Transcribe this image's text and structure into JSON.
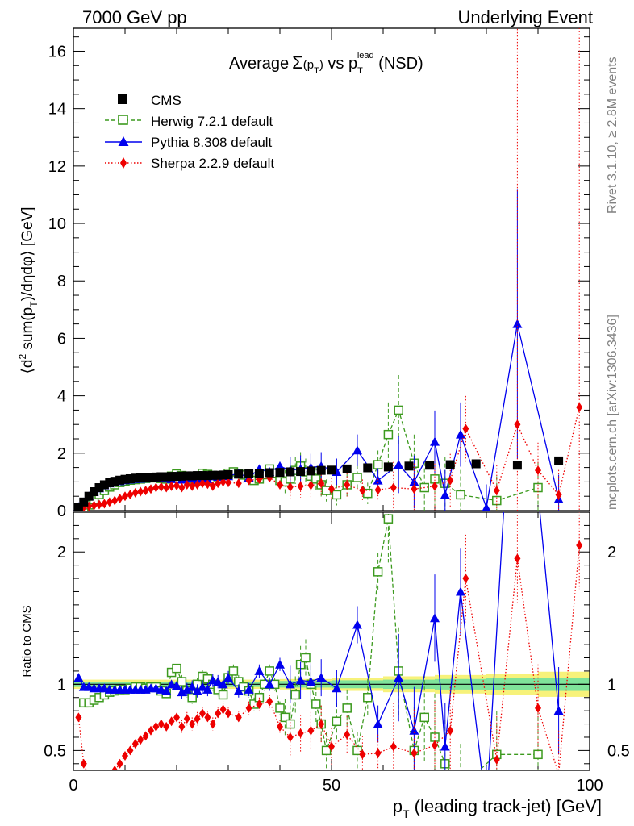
{
  "header": {
    "left": "7000 GeV pp",
    "right": "Underlying Event"
  },
  "side_labels": {
    "rivet": "Rivet 3.1.10, ≥ 2.8M events",
    "mcplots": "mcplots.cern.ch [arXiv:1306.3436]"
  },
  "chart_data": {
    "type": "scatter",
    "title_parts": {
      "a": "Average",
      "b": "Σ",
      "c": "(p",
      "d": "T",
      "e": ")",
      "f": " vs p",
      "g": "T",
      "h": "lead",
      "i": " (NSD)"
    },
    "xlabel": "p_T (leading track-jet) [GeV]",
    "xlabel_parts": {
      "p": "p",
      "sub": "T",
      "rest": " (leading track-jet) [GeV]"
    },
    "ylabel": "⟨d² sum(p_T)/dηdφ⟩ [GeV]",
    "ylabel_parts": {
      "a": "⟨d",
      "b": "2",
      "c": " sum(p",
      "d": "T",
      "e": ")/dηdφ⟩ [GeV]"
    },
    "ratio_ylabel": "Ratio to CMS",
    "xlim": [
      0,
      100
    ],
    "ylim": [
      0,
      16.8
    ],
    "ratio_ylim": [
      0.35,
      2.3
    ],
    "x_ticks": [
      0,
      50,
      100
    ],
    "y_ticks": [
      0,
      2,
      4,
      6,
      8,
      10,
      12,
      14,
      16
    ],
    "ratio_ticks": [
      0.5,
      1,
      2
    ],
    "legend_position": "top-left",
    "colors": {
      "cms": "#000000",
      "herwig": "#3c9a1e",
      "pythia": "#0000ee",
      "sherpa": "#ee0000",
      "band_inner": "#7fe39a",
      "band_outer": "#f7f27a"
    },
    "series": [
      {
        "name": "CMS",
        "x": [
          1,
          2,
          3,
          4,
          5,
          6,
          7,
          8,
          9,
          10,
          11,
          12,
          13,
          14,
          15,
          16,
          17,
          18,
          19,
          20,
          21,
          22,
          23,
          24,
          25,
          26,
          27,
          28,
          29,
          30,
          32,
          34,
          36,
          38,
          40,
          42,
          44,
          46,
          48,
          50,
          53,
          57,
          61,
          65,
          69,
          73,
          78,
          86,
          94
        ],
        "y": [
          0.12,
          0.3,
          0.5,
          0.66,
          0.8,
          0.9,
          0.97,
          1.02,
          1.06,
          1.09,
          1.11,
          1.13,
          1.14,
          1.15,
          1.16,
          1.17,
          1.18,
          1.18,
          1.19,
          1.19,
          1.2,
          1.21,
          1.21,
          1.22,
          1.22,
          1.22,
          1.23,
          1.23,
          1.24,
          1.25,
          1.27,
          1.28,
          1.3,
          1.32,
          1.33,
          1.35,
          1.36,
          1.38,
          1.4,
          1.41,
          1.45,
          1.49,
          1.52,
          1.55,
          1.58,
          1.6,
          1.63,
          1.58,
          1.73
        ]
      },
      {
        "name": "Herwig 7.2.1 default",
        "x": [
          2,
          3,
          4,
          5,
          6,
          7,
          8,
          9,
          10,
          11,
          12,
          13,
          14,
          15,
          16,
          17,
          18,
          19,
          20,
          21,
          22,
          23,
          24,
          25,
          26,
          27,
          28,
          29,
          30,
          31,
          32,
          33,
          34,
          35,
          36,
          37,
          38,
          39,
          40,
          41,
          42,
          43,
          44,
          45,
          46,
          47,
          48,
          49,
          51,
          53,
          55,
          57,
          59,
          61,
          63,
          66,
          68,
          70,
          72,
          75,
          82,
          90
        ],
        "y": [
          0.06,
          0.2,
          0.38,
          0.56,
          0.7,
          0.82,
          0.9,
          0.98,
          1.02,
          1.06,
          1.08,
          1.1,
          1.12,
          1.14,
          1.15,
          1.12,
          1.1,
          1.2,
          1.28,
          1.22,
          1.15,
          1.1,
          1.2,
          1.3,
          1.26,
          1.22,
          1.18,
          1.12,
          1.3,
          1.35,
          1.28,
          1.24,
          1.18,
          1.05,
          1.1,
          1.25,
          1.45,
          1.3,
          1.05,
          1.0,
          1.1,
          1.4,
          1.55,
          1.35,
          1.2,
          1.1,
          0.9,
          0.7,
          0.55,
          0.9,
          1.15,
          0.6,
          1.6,
          2.65,
          3.5,
          1.65,
          0.8,
          1.1,
          0.95,
          0.55,
          0.35,
          0.8
        ]
      },
      {
        "name": "Pythia 8.308 default",
        "x": [
          1,
          2,
          3,
          4,
          5,
          6,
          7,
          8,
          9,
          10,
          11,
          12,
          13,
          14,
          15,
          16,
          17,
          18,
          19,
          20,
          21,
          22,
          23,
          24,
          25,
          26,
          27,
          28,
          29,
          30,
          32,
          34,
          36,
          38,
          40,
          42,
          44,
          46,
          48,
          51,
          55,
          59,
          63,
          66,
          70,
          72,
          75,
          80,
          86,
          94
        ],
        "y": [
          0.13,
          0.29,
          0.5,
          0.66,
          0.78,
          0.88,
          0.95,
          1.0,
          1.03,
          1.06,
          1.08,
          1.1,
          1.11,
          1.12,
          1.14,
          1.15,
          1.14,
          1.12,
          1.1,
          1.2,
          1.08,
          1.12,
          1.15,
          1.06,
          1.12,
          1.1,
          1.2,
          1.18,
          1.25,
          1.2,
          1.3,
          1.15,
          1.45,
          1.35,
          1.55,
          1.4,
          1.45,
          1.5,
          1.55,
          1.35,
          2.1,
          1.05,
          1.6,
          1.0,
          2.4,
          0.55,
          2.65,
          0.1,
          6.5,
          0.4
        ]
      },
      {
        "name": "Sherpa 2.2.9 default",
        "x": [
          1,
          2,
          3,
          4,
          5,
          6,
          7,
          8,
          9,
          10,
          11,
          12,
          13,
          14,
          15,
          16,
          17,
          18,
          19,
          20,
          21,
          22,
          23,
          24,
          25,
          26,
          27,
          28,
          29,
          30,
          32,
          34,
          36,
          38,
          40,
          42,
          44,
          46,
          48,
          50,
          53,
          56,
          59,
          62,
          66,
          70,
          73,
          76,
          82,
          86,
          90,
          94,
          98
        ],
        "y": [
          0.09,
          0.12,
          0.15,
          0.18,
          0.21,
          0.24,
          0.3,
          0.35,
          0.42,
          0.5,
          0.56,
          0.62,
          0.66,
          0.7,
          0.75,
          0.8,
          0.82,
          0.8,
          0.85,
          0.87,
          0.8,
          0.9,
          0.85,
          0.9,
          0.95,
          0.92,
          0.85,
          0.95,
          1.0,
          0.98,
          0.95,
          1.05,
          1.1,
          1.15,
          0.9,
          0.82,
          0.85,
          0.88,
          0.95,
          0.75,
          0.9,
          0.7,
          0.72,
          0.8,
          0.75,
          0.85,
          1.05,
          2.85,
          0.7,
          3.0,
          1.4,
          0.55,
          3.6
        ]
      }
    ],
    "ratios": {
      "Herwig 7.2.1 default": [
        0.86,
        0.86,
        0.88,
        0.9,
        0.92,
        0.94,
        0.95,
        0.96,
        0.96,
        0.97,
        0.98,
        0.98,
        0.97,
        0.98,
        0.98,
        0.95,
        0.93,
        1.09,
        1.12,
        1.02,
        0.95,
        0.9,
        1.0,
        1.06,
        1.04,
        1.0,
        0.96,
        0.92,
        1.05,
        1.1,
        1.02,
        0.98,
        0.95,
        0.85,
        0.9,
        1.0,
        1.1,
        1.0,
        0.82,
        0.75,
        0.7,
        0.92,
        1.15,
        1.2,
        1.0,
        0.85,
        0.7,
        0.5,
        0.72,
        0.82,
        0.5,
        0.9,
        1.85,
        2.25,
        1.1,
        0.5,
        0.75,
        0.6,
        0.4,
        0.22,
        0.47,
        0.47
      ],
      "Pythia 8.308 default": [
        1.05,
        0.98,
        0.98,
        0.97,
        0.97,
        0.97,
        0.96,
        0.96,
        0.96,
        0.96,
        0.96,
        0.96,
        0.96,
        0.96,
        0.97,
        0.97,
        0.96,
        0.95,
        1.0,
        0.99,
        0.94,
        0.96,
        0.98,
        0.95,
        0.98,
        0.96,
        1.03,
        1.02,
        1.0,
        1.05,
        0.95,
        0.96,
        1.1,
        1.0,
        1.15,
        1.0,
        1.03,
        1.02,
        1.05,
        0.97,
        1.45,
        0.7,
        1.05,
        0.65,
        1.5,
        0.53,
        1.7,
        0.05,
        4.1,
        0.8
      ],
      "Sherpa 2.2.9 default": [
        0.75,
        0.4,
        0.3,
        0.27,
        0.26,
        0.27,
        0.31,
        0.35,
        0.4,
        0.46,
        0.5,
        0.55,
        0.58,
        0.61,
        0.65,
        0.68,
        0.7,
        0.68,
        0.72,
        0.75,
        0.68,
        0.74,
        0.7,
        0.74,
        0.78,
        0.75,
        0.7,
        0.78,
        0.81,
        0.78,
        0.75,
        0.82,
        0.85,
        0.87,
        0.68,
        0.6,
        0.63,
        0.65,
        0.7,
        0.53,
        0.62,
        0.47,
        0.48,
        0.53,
        0.48,
        0.54,
        0.65,
        1.8,
        0.43,
        1.95,
        0.82,
        0.32,
        2.05
      ]
    },
    "band": {
      "x_edges": [
        0,
        40,
        50,
        60,
        70,
        80,
        90,
        100
      ],
      "inner_half_width": [
        0.02,
        0.025,
        0.03,
        0.035,
        0.04,
        0.045,
        0.05
      ],
      "outer_half_width": [
        0.035,
        0.04,
        0.05,
        0.06,
        0.07,
        0.08,
        0.095
      ]
    }
  }
}
